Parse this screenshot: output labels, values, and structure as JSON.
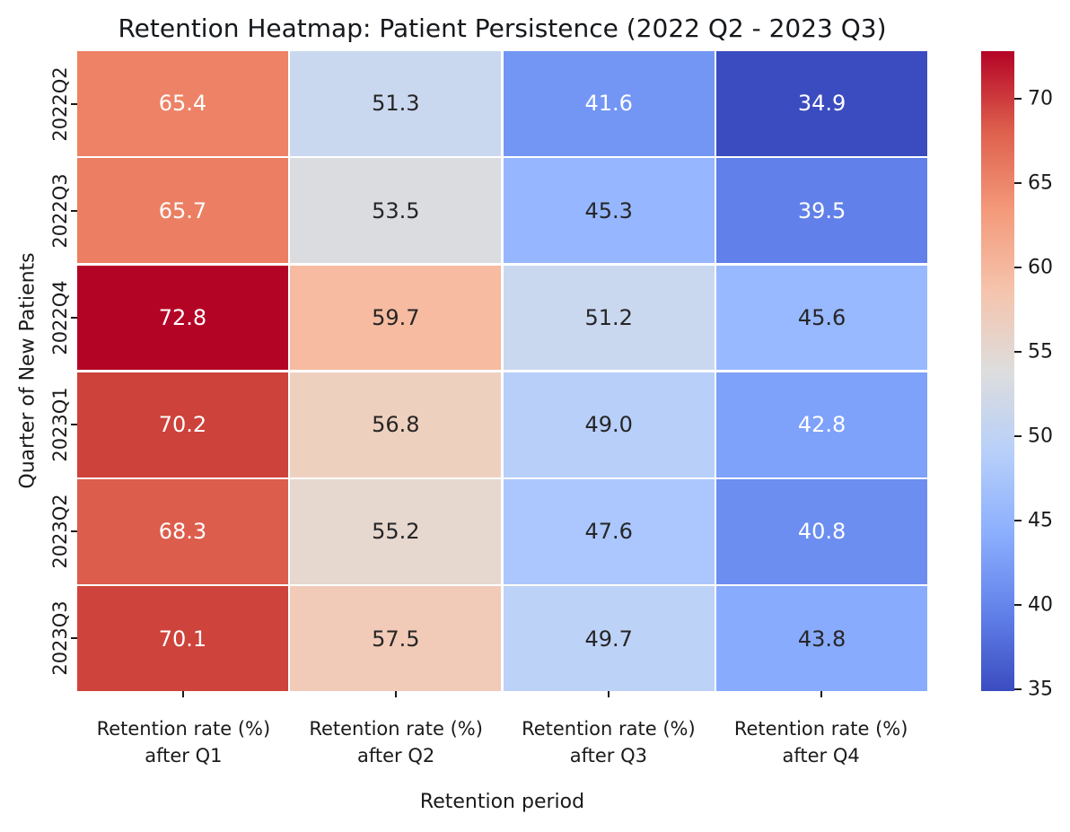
{
  "chart_data": {
    "type": "heatmap",
    "title": "Retention Heatmap: Patient Persistence (2022 Q2 - 2023 Q3)",
    "xlabel": "Retention period",
    "ylabel": "Quarter of New Patients",
    "rows": [
      "2022Q2",
      "2022Q3",
      "2022Q4",
      "2023Q1",
      "2023Q2",
      "2023Q3"
    ],
    "columns": [
      [
        "Retention rate (%)",
        "after Q1"
      ],
      [
        "Retention rate (%)",
        "after Q2"
      ],
      [
        "Retention rate (%)",
        "after Q3"
      ],
      [
        "Retention rate (%)",
        "after Q4"
      ]
    ],
    "values": [
      [
        65.4,
        51.3,
        41.6,
        34.9
      ],
      [
        65.7,
        53.5,
        45.3,
        39.5
      ],
      [
        72.8,
        59.7,
        51.2,
        45.6
      ],
      [
        70.2,
        56.8,
        49.0,
        42.8
      ],
      [
        68.3,
        55.2,
        47.6,
        40.8
      ],
      [
        70.1,
        57.5,
        49.7,
        43.8
      ]
    ],
    "cell_colors": [
      [
        "#ed8266",
        "#cad8ef",
        "#7396f5",
        "#3b4cc0"
      ],
      [
        "#ec7f63",
        "#dbdce0",
        "#96b7ff",
        "#6180e9"
      ],
      [
        "#b40426",
        "#f7bba1",
        "#cad8ef",
        "#98b9ff"
      ],
      [
        "#cd423a",
        "#eed0bf",
        "#b7cff9",
        "#7ea1fa"
      ],
      [
        "#dc5d4b",
        "#e6d7cf",
        "#abc7fe",
        "#6c8ef1"
      ],
      [
        "#ce433b",
        "#f1cbb8",
        "#bdd2f7",
        "#88abfd"
      ]
    ],
    "annotation_colors": {
      "light": "#ffffff",
      "dark": "#262626"
    },
    "grid_line_color": "#ffffff",
    "colormap": "coolwarm",
    "colorbar": {
      "vmin": 34.9,
      "vmax": 72.8,
      "ticks": [
        35,
        40,
        45,
        50,
        55,
        60,
        65,
        70
      ],
      "gradient_stops": [
        {
          "pos": 0.0,
          "color": "#3b4cc0"
        },
        {
          "pos": 0.125,
          "color": "#6282ea"
        },
        {
          "pos": 0.25,
          "color": "#8db0fe"
        },
        {
          "pos": 0.375,
          "color": "#b8d0f9"
        },
        {
          "pos": 0.5,
          "color": "#dddddd"
        },
        {
          "pos": 0.625,
          "color": "#f5c4ad"
        },
        {
          "pos": 0.75,
          "color": "#f49a7b"
        },
        {
          "pos": 0.875,
          "color": "#de604d"
        },
        {
          "pos": 1.0,
          "color": "#b40426"
        }
      ]
    },
    "layout": {
      "grid_on": false,
      "legend": "colorbar-right"
    }
  }
}
